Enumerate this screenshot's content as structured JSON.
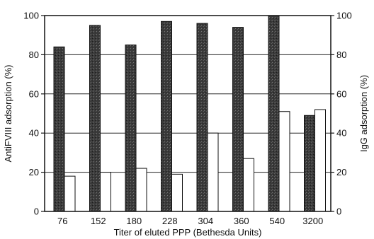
{
  "chart_data": {
    "type": "bar",
    "title": "",
    "xlabel": "Titer of eluted PPP (Bethesda Units)",
    "ylabel_left": "AntiFVIII adsorption (%)",
    "ylabel_right": "IgG adsorption (%)",
    "categories": [
      "76",
      "152",
      "180",
      "228",
      "304",
      "360",
      "540",
      "3200"
    ],
    "series": [
      {
        "name": "",
        "axis": "left",
        "style": "dark-stippled",
        "values": [
          84,
          95,
          85,
          97,
          96,
          94,
          100,
          49
        ]
      },
      {
        "name": "",
        "axis": "right",
        "style": "white",
        "values": [
          18,
          20,
          22,
          19,
          40,
          27,
          51,
          52
        ]
      }
    ],
    "ylim_left": [
      0,
      100
    ],
    "ylim_right": [
      0,
      100
    ],
    "yticks_left": [
      "0",
      "20",
      "40",
      "60",
      "80",
      "100"
    ],
    "yticks_right": [
      "0",
      "20",
      "40",
      "60",
      "80",
      "100"
    ],
    "grid": true,
    "colors": {
      "dark_bar": "#3a3a3a",
      "light_bar": "#ffffff",
      "outline": "#111111"
    }
  }
}
